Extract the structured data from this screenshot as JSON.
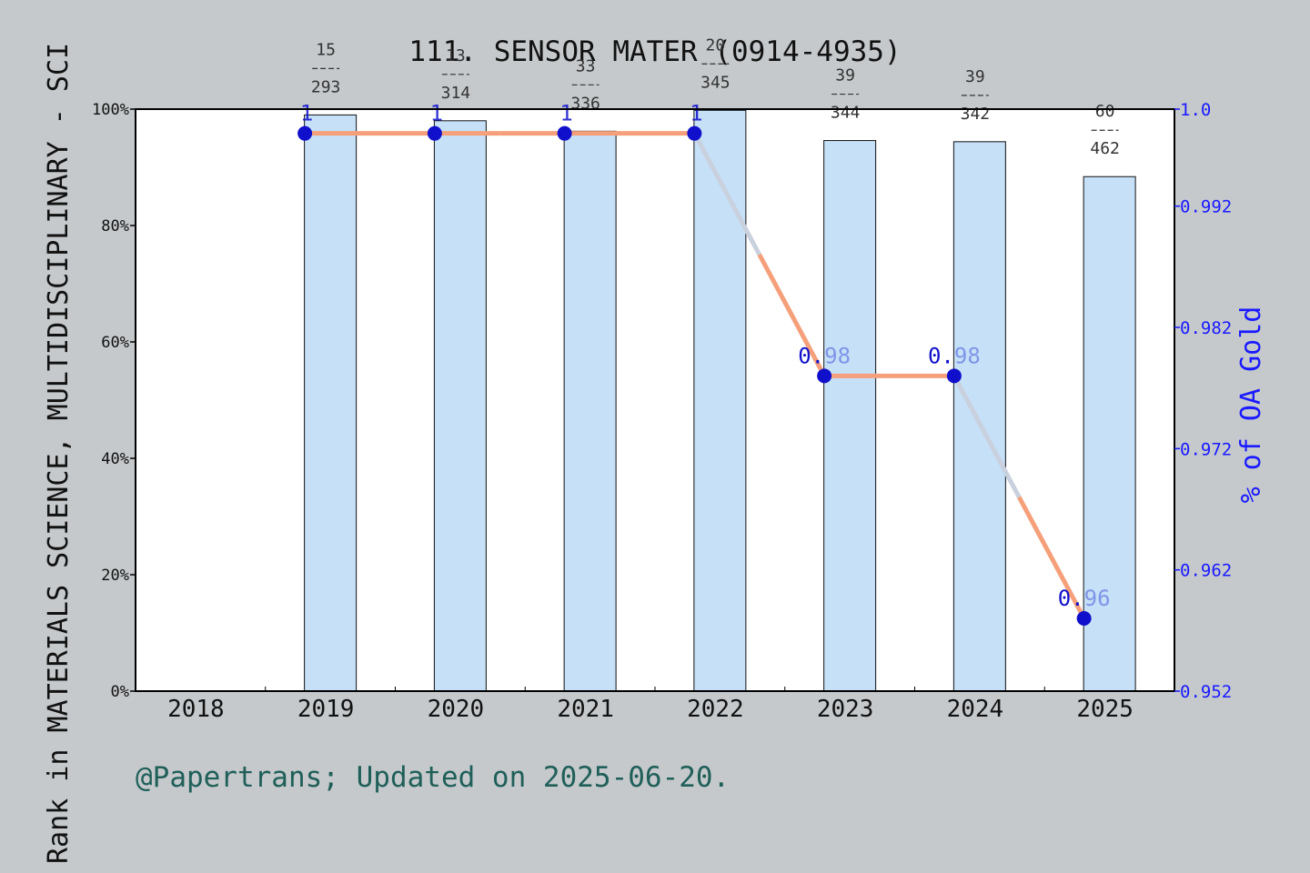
{
  "footer": "@Papertrans; Updated on 2025-06-20.",
  "chart_data": {
    "type": "bar",
    "title": "111. SENSOR MATER (0914-4935)",
    "ylabel_left": "Rank in MATERIALS SCIENCE, MULTIDISCIPLINARY - SCI",
    "ylabel_right": "% of OA Gold",
    "categories": [
      "2018",
      "2019",
      "2020",
      "2021",
      "2022",
      "2023",
      "2024",
      "2025"
    ],
    "left_ticks": [
      "0%",
      "20%",
      "40%",
      "60%",
      "80%",
      "100%"
    ],
    "left_ylim": [
      0,
      100
    ],
    "right_ticks": [
      "0.952",
      "0.962",
      "0.972",
      "0.982",
      "0.992",
      "1.0"
    ],
    "right_ylim": [
      0.952,
      1.0
    ],
    "bars": [
      {
        "year": "2019",
        "value": 99.0,
        "label_top": "15",
        "label_bottom": "293"
      },
      {
        "year": "2020",
        "value": 98.0,
        "label_top": "13",
        "label_bottom": "314"
      },
      {
        "year": "2021",
        "value": 96.2,
        "label_top": "33",
        "label_bottom": "336"
      },
      {
        "year": "2022",
        "value": 99.8,
        "label_top": "20",
        "label_bottom": "345"
      },
      {
        "year": "2023",
        "value": 94.6,
        "label_top": "39",
        "label_bottom": "344"
      },
      {
        "year": "2024",
        "value": 94.4,
        "label_top": "39",
        "label_bottom": "342"
      },
      {
        "year": "2025",
        "value": 88.4,
        "label_top": "60",
        "label_bottom": "462"
      }
    ],
    "oa_series": [
      {
        "year": "2019",
        "value": 0.998,
        "label": "1"
      },
      {
        "year": "2020",
        "value": 0.998,
        "label": "1"
      },
      {
        "year": "2021",
        "value": 0.998,
        "label": "1"
      },
      {
        "year": "2022",
        "value": 0.998,
        "label": "1"
      },
      {
        "year": "2023",
        "value": 0.978,
        "label": "0.98"
      },
      {
        "year": "2024",
        "value": 0.978,
        "label": "0.98"
      },
      {
        "year": "2025",
        "value": 0.958,
        "label": "0.96"
      }
    ],
    "colors": {
      "bar_fill": "#c5e0f7",
      "bar_stroke": "#111111",
      "trend_up_or_flat": "#f5a07a",
      "trend_down": "#c9d0de",
      "point_fill": "#1010cc",
      "ratio_label_left": "#1010cc",
      "ratio_label_right": "#7f95e8",
      "right_axis": "#1a1aff"
    },
    "grid": false,
    "legend": "none"
  }
}
